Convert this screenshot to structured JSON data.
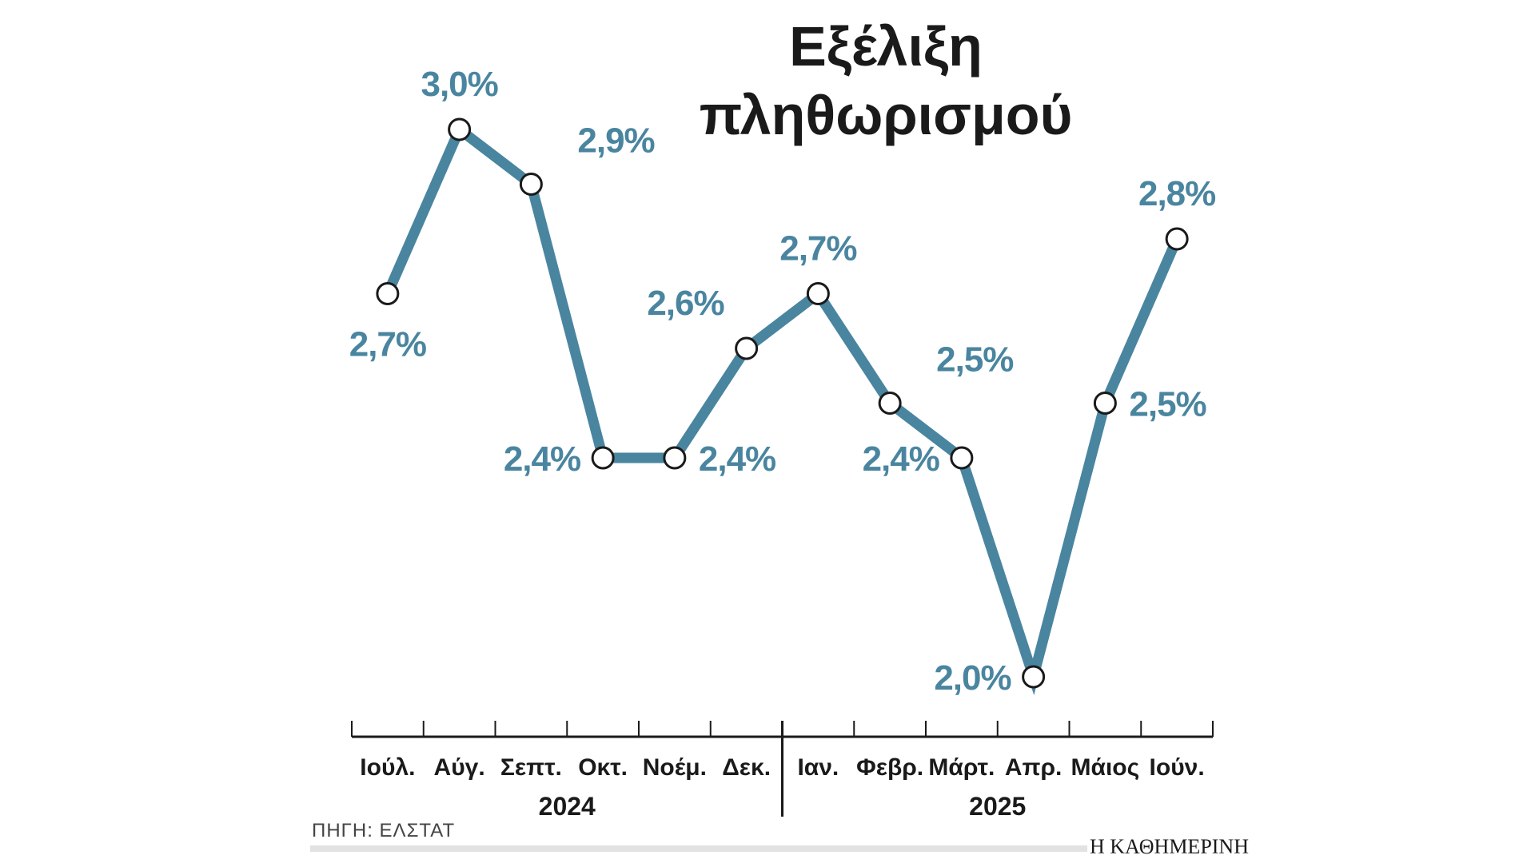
{
  "colors": {
    "series": "#4a85a0",
    "marker_fill": "#ffffff",
    "marker_stroke": "#1a1a1a",
    "axis": "#1a1a1a",
    "text": "#1a1a1a",
    "source_bar": "#e2e2e2"
  },
  "chart_data": {
    "type": "line",
    "title": "Εξέλιξη πληθωρισμού",
    "title_lines": [
      "Εξέλιξη",
      "πληθωρισμού"
    ],
    "categories": [
      "Ιούλ.",
      "Αύγ.",
      "Σεπτ.",
      "Οκτ.",
      "Νοέμ.",
      "Δεκ.",
      "Ιαν.",
      "Φεβρ.",
      "Μάρτ.",
      "Απρ.",
      "Μάιος",
      "Ιούν."
    ],
    "years": [
      {
        "label": "2024",
        "months": [
          "Ιούλ.",
          "Αύγ.",
          "Σεπτ.",
          "Οκτ.",
          "Νοέμ.",
          "Δεκ."
        ]
      },
      {
        "label": "2025",
        "months": [
          "Ιαν.",
          "Φεβρ.",
          "Μάρτ.",
          "Απρ.",
          "Μάιος",
          "Ιούν."
        ]
      }
    ],
    "series": [
      {
        "values": [
          2.7,
          3.0,
          2.9,
          2.4,
          2.4,
          2.6,
          2.7,
          2.5,
          2.4,
          2.0,
          2.5,
          2.8
        ],
        "labels": [
          "2,7%",
          "3,0%",
          "2,9%",
          "2,4%",
          "2,4%",
          "2,6%",
          "2,7%",
          "2,5%",
          "2,4%",
          "2,0%",
          "2,5%",
          "2,8%"
        ],
        "label_placement": [
          "below",
          "above",
          "above-right",
          "left",
          "right",
          "above-left",
          "above",
          "above-right",
          "left",
          "left",
          "right",
          "above"
        ]
      }
    ],
    "xlabel": "",
    "ylabel": "",
    "grid": false,
    "legend": "none"
  },
  "footer": {
    "source": "ΠΗΓΗ: ΕΛΣΤΑΤ",
    "brand": "Η ΚΑΘΗΜΕΡΙΝΗ"
  }
}
